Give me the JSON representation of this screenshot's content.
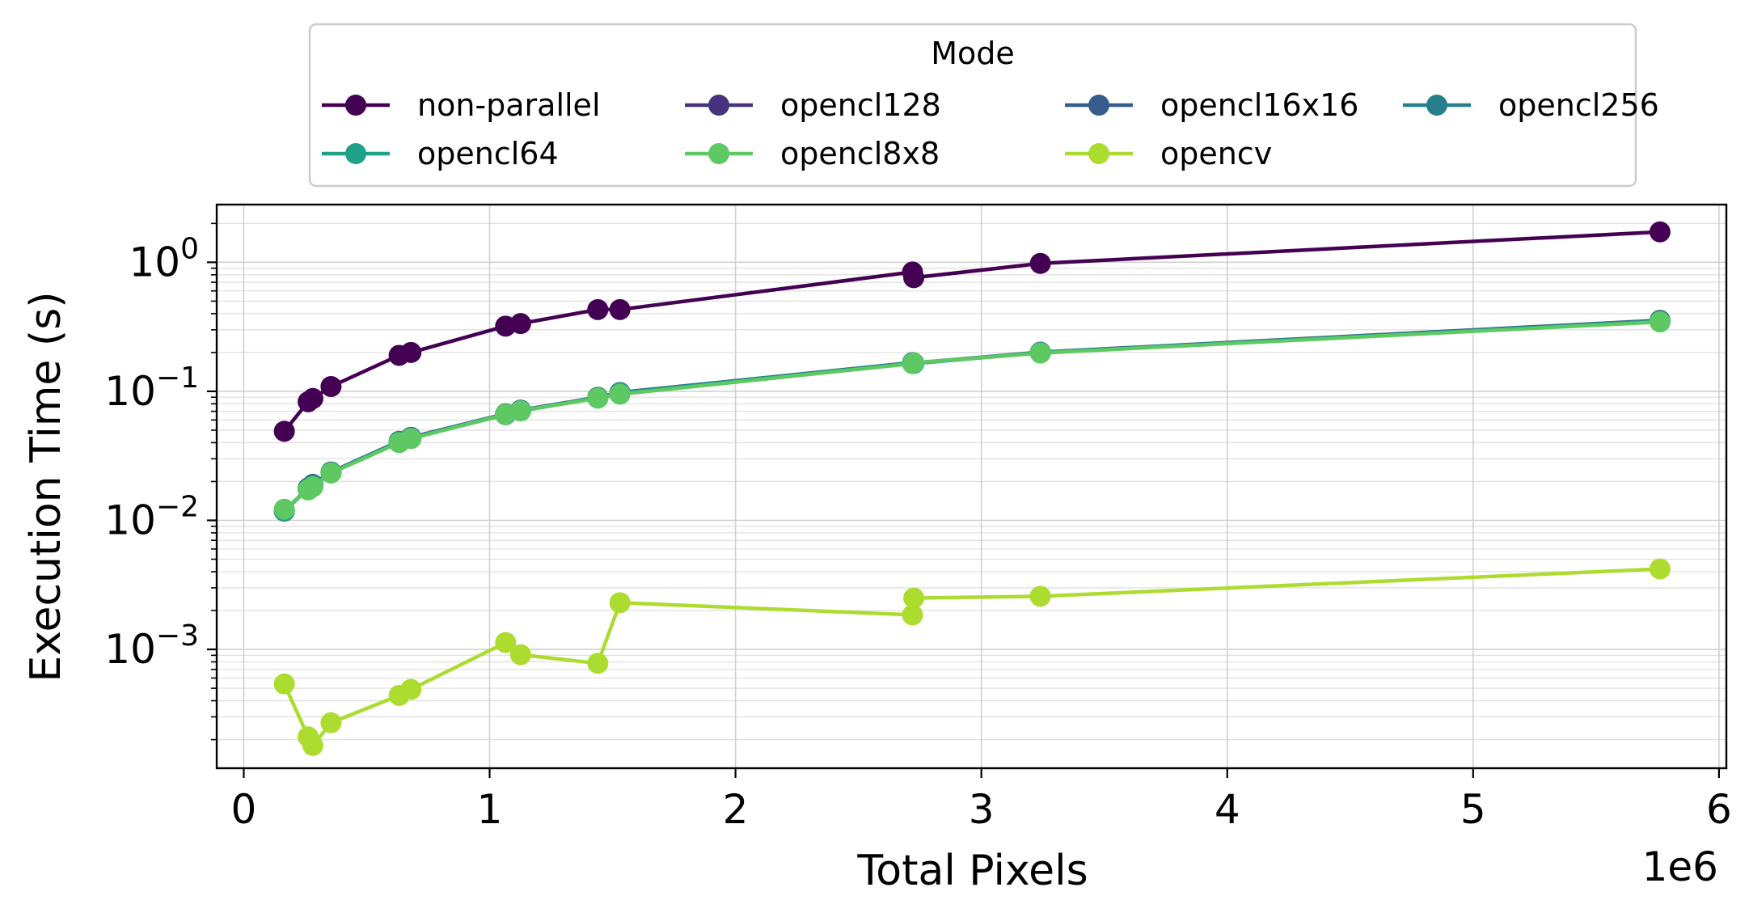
{
  "chart_data": {
    "type": "line",
    "title": "",
    "xlabel": "Total Pixels",
    "ylabel": "Execution Time (s)",
    "x_offset_label": "1e6",
    "x_scale": 1000000,
    "yscale": "log",
    "xlim": [
      -110000,
      6030000
    ],
    "ylim": [
      0.00012,
      2.8
    ],
    "grid": true,
    "x_ticks": [
      0,
      1000000,
      2000000,
      3000000,
      4000000,
      5000000,
      6000000
    ],
    "x_tick_labels": [
      "0",
      "1",
      "2",
      "3",
      "4",
      "5",
      "6"
    ],
    "y_ticks": [
      0.001,
      0.01,
      0.1,
      1
    ],
    "y_tick_labels": [
      {
        "base": "10",
        "exp": "−3"
      },
      {
        "base": "10",
        "exp": "−2"
      },
      {
        "base": "10",
        "exp": "−1"
      },
      {
        "base": "10",
        "exp": "0"
      }
    ],
    "legend": {
      "title": "Mode",
      "placement": "top-center-outside",
      "columns": 4
    },
    "x": [
      165000,
      262000,
      281000,
      355000,
      632000,
      680000,
      1065000,
      1126000,
      1440000,
      1530000,
      2720000,
      2725000,
      3240000,
      5760000
    ],
    "series": [
      {
        "name": "non-parallel",
        "color": "#440154",
        "values": [
          0.049,
          0.083,
          0.088,
          0.109,
          0.19,
          0.2,
          0.32,
          0.335,
          0.43,
          0.43,
          0.84,
          0.76,
          0.98,
          1.72
        ]
      },
      {
        "name": "opencl128",
        "color": "#46327e",
        "values": [
          0.0118,
          0.0175,
          0.0185,
          0.0235,
          0.0405,
          0.0435,
          0.066,
          0.071,
          0.089,
          0.097,
          0.166,
          0.165,
          0.2,
          0.35
        ]
      },
      {
        "name": "opencl16x16",
        "color": "#365c8d",
        "values": [
          0.0118,
          0.0178,
          0.019,
          0.0237,
          0.041,
          0.044,
          0.067,
          0.0715,
          0.09,
          0.098,
          0.167,
          0.166,
          0.201,
          0.355
        ]
      },
      {
        "name": "opencl256",
        "color": "#277f8e",
        "values": [
          0.012,
          0.0175,
          0.0187,
          0.0236,
          0.0408,
          0.0437,
          0.0665,
          0.0712,
          0.0895,
          0.0975,
          0.1665,
          0.1655,
          0.2,
          0.352
        ]
      },
      {
        "name": "opencl64",
        "color": "#1fa187",
        "values": [
          0.0119,
          0.0174,
          0.0184,
          0.0234,
          0.0402,
          0.0432,
          0.066,
          0.0705,
          0.089,
          0.0965,
          0.165,
          0.164,
          0.199,
          0.348
        ]
      },
      {
        "name": "opencl8x8",
        "color": "#5ec962",
        "values": [
          0.0122,
          0.0172,
          0.0182,
          0.0233,
          0.04,
          0.043,
          0.0665,
          0.0705,
          0.0885,
          0.095,
          0.164,
          0.166,
          0.198,
          0.345
        ]
      },
      {
        "name": "opencv",
        "color": "#addc30",
        "values": [
          0.00054,
          0.00021,
          0.00018,
          0.00027,
          0.00044,
          0.00049,
          0.00113,
          0.00091,
          0.00078,
          0.0023,
          0.00185,
          0.0025,
          0.00258,
          0.0042
        ]
      }
    ]
  }
}
